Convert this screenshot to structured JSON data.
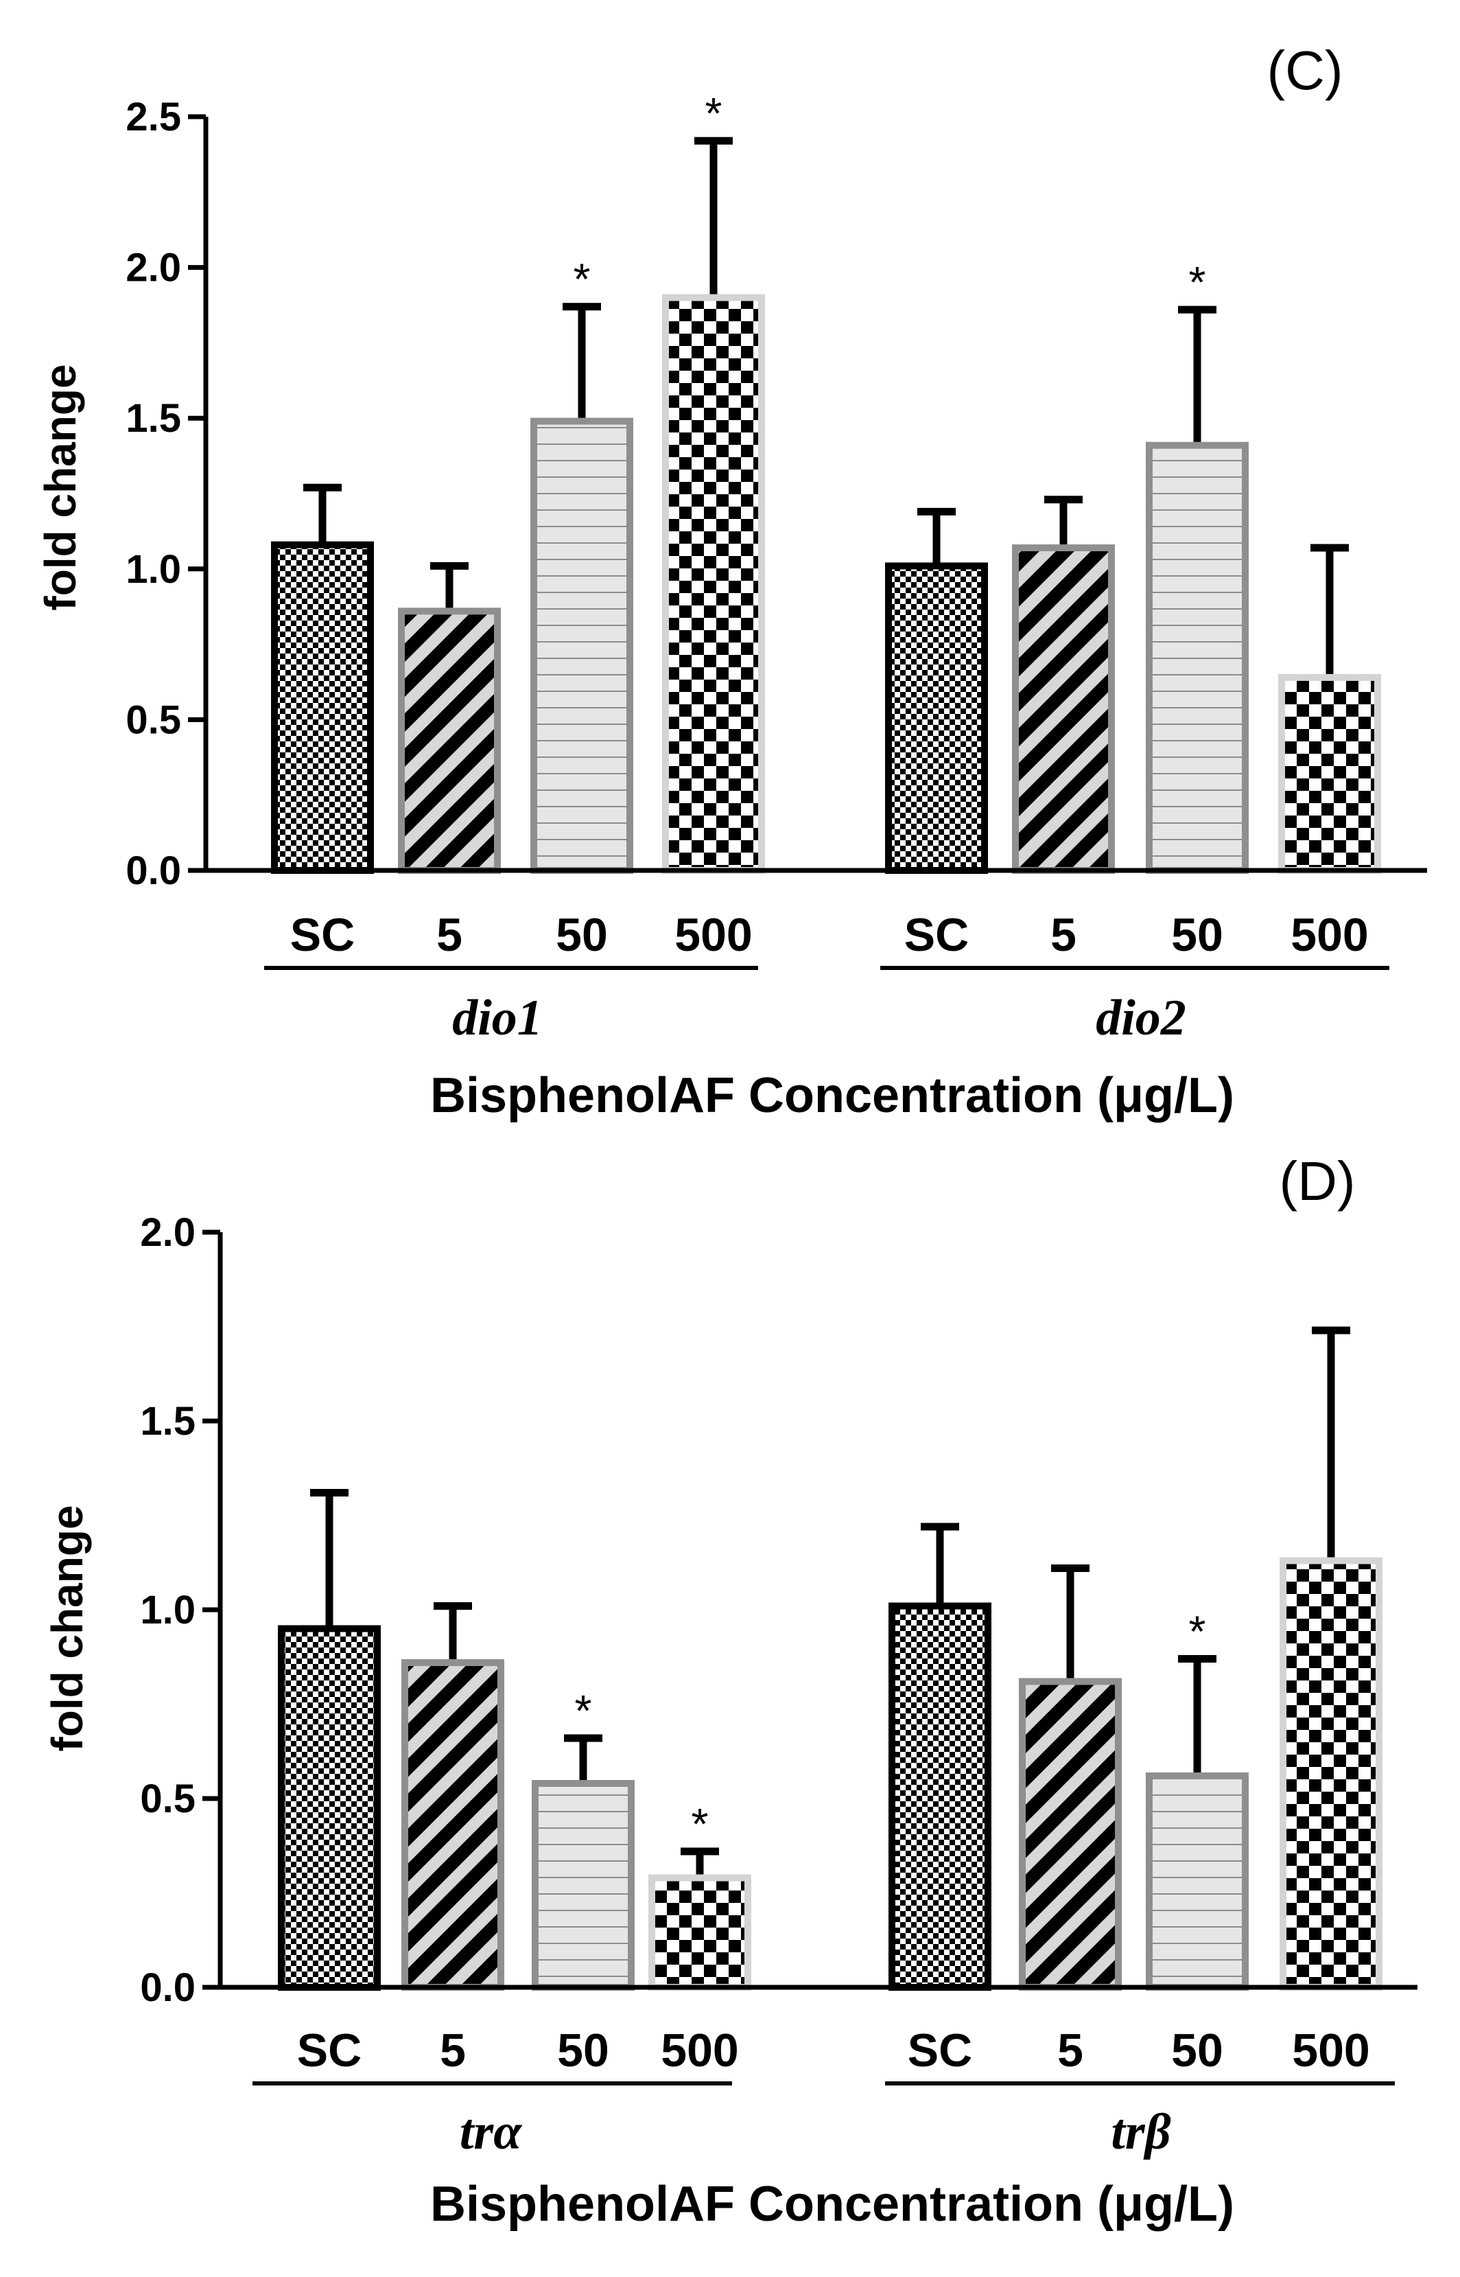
{
  "chart_data": [
    {
      "type": "bar",
      "panel": "(C)",
      "ylabel": "fold change",
      "xlabel": "BisphenolAF Concentration (μg/L)",
      "ylim": [
        0,
        2.5
      ],
      "yticks": [
        "0.0",
        "0.5",
        "1.0",
        "1.5",
        "2.0",
        "2.5"
      ],
      "ytick_values": [
        0,
        0.5,
        1.0,
        1.5,
        2.0,
        2.5
      ],
      "groups": [
        {
          "name": "dio1",
          "bars": [
            {
              "label": "SC",
              "value": 1.08,
              "error": 0.19,
              "sig": ""
            },
            {
              "label": "5",
              "value": 0.86,
              "error": 0.15,
              "sig": ""
            },
            {
              "label": "50",
              "value": 1.49,
              "error": 0.38,
              "sig": "*"
            },
            {
              "label": "500",
              "value": 1.9,
              "error": 0.52,
              "sig": "*"
            }
          ]
        },
        {
          "name": "dio2",
          "bars": [
            {
              "label": "SC",
              "value": 1.01,
              "error": 0.18,
              "sig": ""
            },
            {
              "label": "5",
              "value": 1.07,
              "error": 0.16,
              "sig": ""
            },
            {
              "label": "50",
              "value": 1.41,
              "error": 0.45,
              "sig": "*"
            },
            {
              "label": "500",
              "value": 0.64,
              "error": 0.43,
              "sig": ""
            }
          ]
        }
      ]
    },
    {
      "type": "bar",
      "panel": "(D)",
      "ylabel": "fold change",
      "xlabel": "BisphenolAF Concentration (μg/L)",
      "ylim": [
        0,
        2.0
      ],
      "yticks": [
        "0.0",
        "0.5",
        "1.0",
        "1.5",
        "2.0"
      ],
      "ytick_values": [
        0,
        0.5,
        1.0,
        1.5,
        2.0
      ],
      "groups": [
        {
          "name": "trα",
          "bars": [
            {
              "label": "SC",
              "value": 0.95,
              "error": 0.36,
              "sig": ""
            },
            {
              "label": "5",
              "value": 0.86,
              "error": 0.15,
              "sig": ""
            },
            {
              "label": "50",
              "value": 0.54,
              "error": 0.12,
              "sig": "*"
            },
            {
              "label": "500",
              "value": 0.29,
              "error": 0.07,
              "sig": "*"
            }
          ]
        },
        {
          "name": "trβ",
          "bars": [
            {
              "label": "SC",
              "value": 1.01,
              "error": 0.21,
              "sig": ""
            },
            {
              "label": "5",
              "value": 0.81,
              "error": 0.3,
              "sig": ""
            },
            {
              "label": "50",
              "value": 0.56,
              "error": 0.31,
              "sig": "*"
            },
            {
              "label": "500",
              "value": 1.13,
              "error": 0.61,
              "sig": ""
            }
          ]
        }
      ]
    }
  ]
}
